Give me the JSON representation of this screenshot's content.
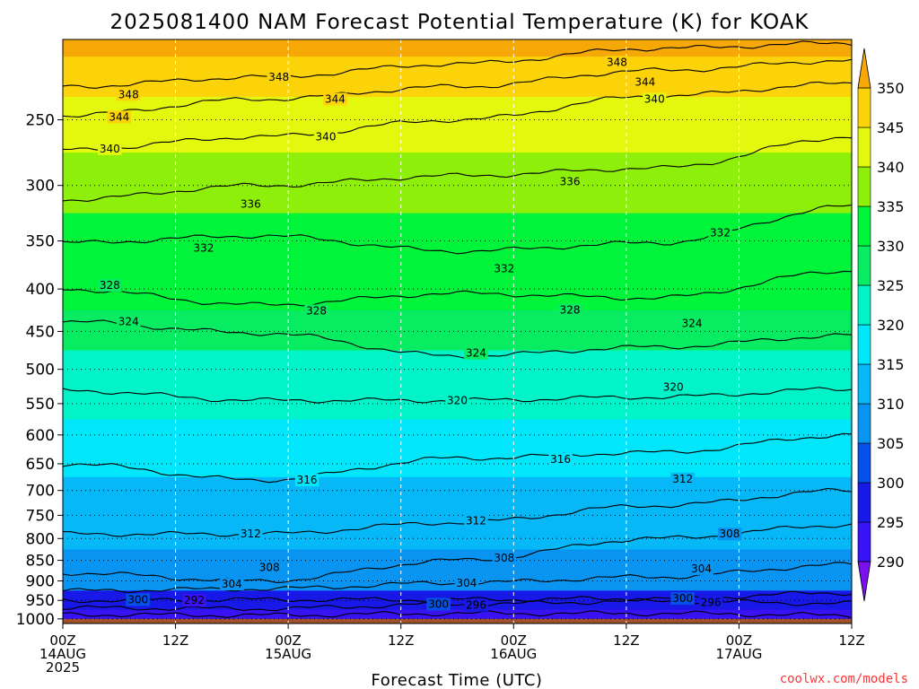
{
  "chart_data": {
    "type": "contour",
    "title": "2025081400 NAM Forecast Potential Temperature (K) for KOAK",
    "xlabel": "Forecast Time (UTC)",
    "ylabel": "",
    "y_ticks": [
      250,
      300,
      350,
      400,
      450,
      500,
      550,
      600,
      650,
      700,
      750,
      800,
      850,
      900,
      950,
      1000
    ],
    "y_tick_labels": [
      "250",
      "300",
      "350",
      "400",
      "450",
      "500",
      "550",
      "600",
      "650",
      "700",
      "750",
      "800",
      "850",
      "900",
      "950",
      "1000"
    ],
    "y_range": [
      200,
      1013
    ],
    "y_scale": "log",
    "y_direction": "reversed",
    "x_range_hours": [
      0,
      84
    ],
    "x_ticks_hours": [
      0,
      12,
      24,
      36,
      48,
      60,
      72,
      84
    ],
    "x_tick_labels": [
      [
        "00Z",
        "14AUG",
        "2025"
      ],
      [
        "12Z"
      ],
      [
        "00Z",
        "15AUG"
      ],
      [
        "12Z"
      ],
      [
        "00Z",
        "16AUG"
      ],
      [
        "12Z"
      ],
      [
        "00Z",
        "17AUG"
      ],
      [
        "12Z"
      ]
    ],
    "colorbar": {
      "labels": [
        "350",
        "345",
        "340",
        "335",
        "330",
        "325",
        "320",
        "315",
        "310",
        "305",
        "300",
        "295",
        "290"
      ],
      "levels": [
        290,
        295,
        300,
        305,
        310,
        315,
        320,
        325,
        330,
        335,
        340,
        345,
        350
      ],
      "colors": [
        "#7a10ee",
        "#3a12f6",
        "#1818e8",
        "#0450e8",
        "#0894f0",
        "#06b8f8",
        "#00e6fa",
        "#00f4c8",
        "#08ec62",
        "#00f43a",
        "#8ef00a",
        "#e4f80e",
        "#fcd208",
        "#f6a806"
      ],
      "extend": "both"
    },
    "shaded_levels": [
      {
        "p": 200,
        "theta": 352
      },
      {
        "p": 220,
        "theta": 349
      },
      {
        "p": 250,
        "theta": 343
      },
      {
        "p": 300,
        "theta": 337
      },
      {
        "p": 350,
        "theta": 333
      },
      {
        "p": 400,
        "theta": 330
      },
      {
        "p": 450,
        "theta": 326
      },
      {
        "p": 500,
        "theta": 323
      },
      {
        "p": 550,
        "theta": 320
      },
      {
        "p": 600,
        "theta": 318
      },
      {
        "p": 650,
        "theta": 316
      },
      {
        "p": 700,
        "theta": 314
      },
      {
        "p": 750,
        "theta": 312
      },
      {
        "p": 800,
        "theta": 310
      },
      {
        "p": 850,
        "theta": 308
      },
      {
        "p": 900,
        "theta": 305
      },
      {
        "p": 950,
        "theta": 299
      },
      {
        "p": 1000,
        "theta": 291
      }
    ],
    "contour_lines": [
      {
        "label": "348",
        "level": 348,
        "p": [
          228,
          222,
          214,
          205,
          202
        ]
      },
      {
        "label": "344",
        "level": 344,
        "p": [
          247,
          236,
          228,
          218,
          212
        ]
      },
      {
        "label": "340",
        "level": 340,
        "p": [
          272,
          262,
          250,
          234,
          226
        ]
      },
      {
        "label": "336",
        "level": 336,
        "p": [
          312,
          300,
          292,
          286,
          262
        ]
      },
      {
        "label": "332",
        "level": 332,
        "p": [
          352,
          345,
          360,
          352,
          318
        ]
      },
      {
        "label": "328",
        "level": 328,
        "p": [
          400,
          418,
          405,
          410,
          380
        ]
      },
      {
        "label": "324",
        "level": 324,
        "p": [
          438,
          452,
          482,
          470,
          455
        ]
      },
      {
        "label": "320",
        "level": 320,
        "p": [
          530,
          545,
          545,
          540,
          528
        ]
      },
      {
        "label": "316",
        "level": 316,
        "p": [
          650,
          680,
          640,
          630,
          600
        ]
      },
      {
        "label": "312",
        "level": 312,
        "p": [
          790,
          790,
          765,
          730,
          700
        ]
      },
      {
        "label": "308",
        "level": 308,
        "p": [
          880,
          900,
          850,
          800,
          770
        ]
      },
      {
        "label": "304",
        "level": 304,
        "p": [
          925,
          920,
          905,
          890,
          860
        ]
      },
      {
        "label": "300",
        "level": 300,
        "p": [
          950,
          948,
          948,
          945,
          930
        ]
      },
      {
        "label": "296",
        "level": 296,
        "p": [
          970,
          972,
          960,
          952,
          958
        ]
      },
      {
        "label": "292",
        "level": 292,
        "p": [
          988,
          990,
          985,
          985,
          990
        ]
      }
    ],
    "inline_labels": [
      {
        "text": "348",
        "x": 23,
        "p": 222
      },
      {
        "text": "348",
        "x": 7,
        "p": 233
      },
      {
        "text": "348",
        "x": 59,
        "p": 213
      },
      {
        "text": "344",
        "x": 29,
        "p": 236
      },
      {
        "text": "344",
        "x": 62,
        "p": 225
      },
      {
        "text": "344",
        "x": 6,
        "p": 248
      },
      {
        "text": "340",
        "x": 28,
        "p": 262
      },
      {
        "text": "340",
        "x": 63,
        "p": 236
      },
      {
        "text": "340",
        "x": 5,
        "p": 271
      },
      {
        "text": "336",
        "x": 20,
        "p": 316
      },
      {
        "text": "336",
        "x": 54,
        "p": 297
      },
      {
        "text": "332",
        "x": 15,
        "p": 357
      },
      {
        "text": "332",
        "x": 47,
        "p": 378
      },
      {
        "text": "332",
        "x": 70,
        "p": 342
      },
      {
        "text": "328",
        "x": 5,
        "p": 396
      },
      {
        "text": "328",
        "x": 27,
        "p": 425
      },
      {
        "text": "328",
        "x": 54,
        "p": 424
      },
      {
        "text": "324",
        "x": 7,
        "p": 438
      },
      {
        "text": "324",
        "x": 44,
        "p": 478
      },
      {
        "text": "324",
        "x": 67,
        "p": 440
      },
      {
        "text": "320",
        "x": 42,
        "p": 545
      },
      {
        "text": "320",
        "x": 65,
        "p": 525
      },
      {
        "text": "316",
        "x": 26,
        "p": 680
      },
      {
        "text": "316",
        "x": 53,
        "p": 642
      },
      {
        "text": "312",
        "x": 20,
        "p": 790
      },
      {
        "text": "312",
        "x": 44,
        "p": 762
      },
      {
        "text": "312",
        "x": 66,
        "p": 678
      },
      {
        "text": "308",
        "x": 22,
        "p": 867
      },
      {
        "text": "308",
        "x": 47,
        "p": 845
      },
      {
        "text": "308",
        "x": 71,
        "p": 790
      },
      {
        "text": "304",
        "x": 18,
        "p": 908
      },
      {
        "text": "304",
        "x": 43,
        "p": 906
      },
      {
        "text": "304",
        "x": 68,
        "p": 870
      },
      {
        "text": "300",
        "x": 8,
        "p": 948
      },
      {
        "text": "300",
        "x": 40,
        "p": 960
      },
      {
        "text": "300",
        "x": 66,
        "p": 945
      },
      {
        "text": "296",
        "x": 44,
        "p": 963
      },
      {
        "text": "296",
        "x": 69,
        "p": 955
      },
      {
        "text": "292",
        "x": 14,
        "p": 950
      }
    ],
    "ground": {
      "p_from": 1013,
      "p_to": 1000,
      "color": "#a0522d"
    },
    "grid": true,
    "credit": "coolwx.com/models"
  }
}
